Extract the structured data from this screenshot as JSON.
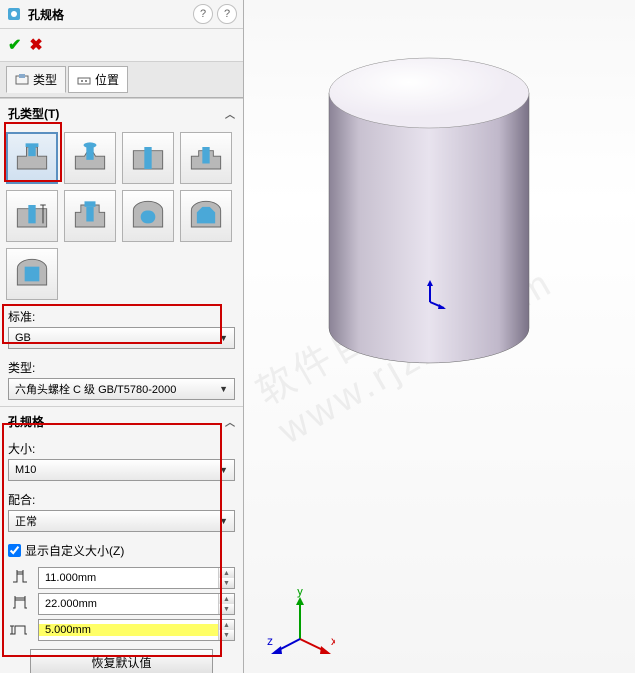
{
  "title": "孔规格",
  "ok_symbol": "✔",
  "cancel_symbol": "✖",
  "help1": "?",
  "help2": "?",
  "tabs": {
    "type_icon": "type",
    "type_label": "类型",
    "pos_icon": "pos",
    "pos_label": "位置"
  },
  "section_holetype": "孔类型(T)",
  "hole_buttons": [
    {
      "id": "cbore",
      "sel": true
    },
    {
      "id": "csink",
      "sel": false
    },
    {
      "id": "straight",
      "sel": false
    },
    {
      "id": "step",
      "sel": false
    },
    {
      "id": "tapered",
      "sel": false
    },
    {
      "id": "flanged",
      "sel": false
    },
    {
      "id": "slot1",
      "sel": false
    },
    {
      "id": "slot2",
      "sel": false
    },
    {
      "id": "slot3",
      "sel": false
    }
  ],
  "standard_label": "标准:",
  "standard_value": "GB",
  "type_label": "类型:",
  "type_value": "六角头螺栓 C 级 GB/T5780-2000",
  "section_spec": "孔规格",
  "size_label": "大小:",
  "size_value": "M10",
  "fit_label": "配合:",
  "fit_value": "正常",
  "show_custom_label": "显示自定义大小(Z)",
  "show_custom_checked": true,
  "dims": [
    {
      "icon": "d1",
      "value": "11.000mm",
      "hl": false
    },
    {
      "icon": "d2",
      "value": "22.000mm",
      "hl": false
    },
    {
      "icon": "d3",
      "value": "5.000mm",
      "hl": true
    }
  ],
  "restore_label": "恢复默认值",
  "triad": {
    "x": "x",
    "y": "y",
    "z": "z"
  },
  "colors": {
    "red": "#cc0000",
    "cyl_fill": "#d5cddb",
    "cyl_shade": "#9e98aa",
    "axis_x": "#d00000",
    "axis_y": "#00a000",
    "axis_z": "#0000d0"
  },
  "watermark_text": "软件自学网 www.rjzxw.com"
}
